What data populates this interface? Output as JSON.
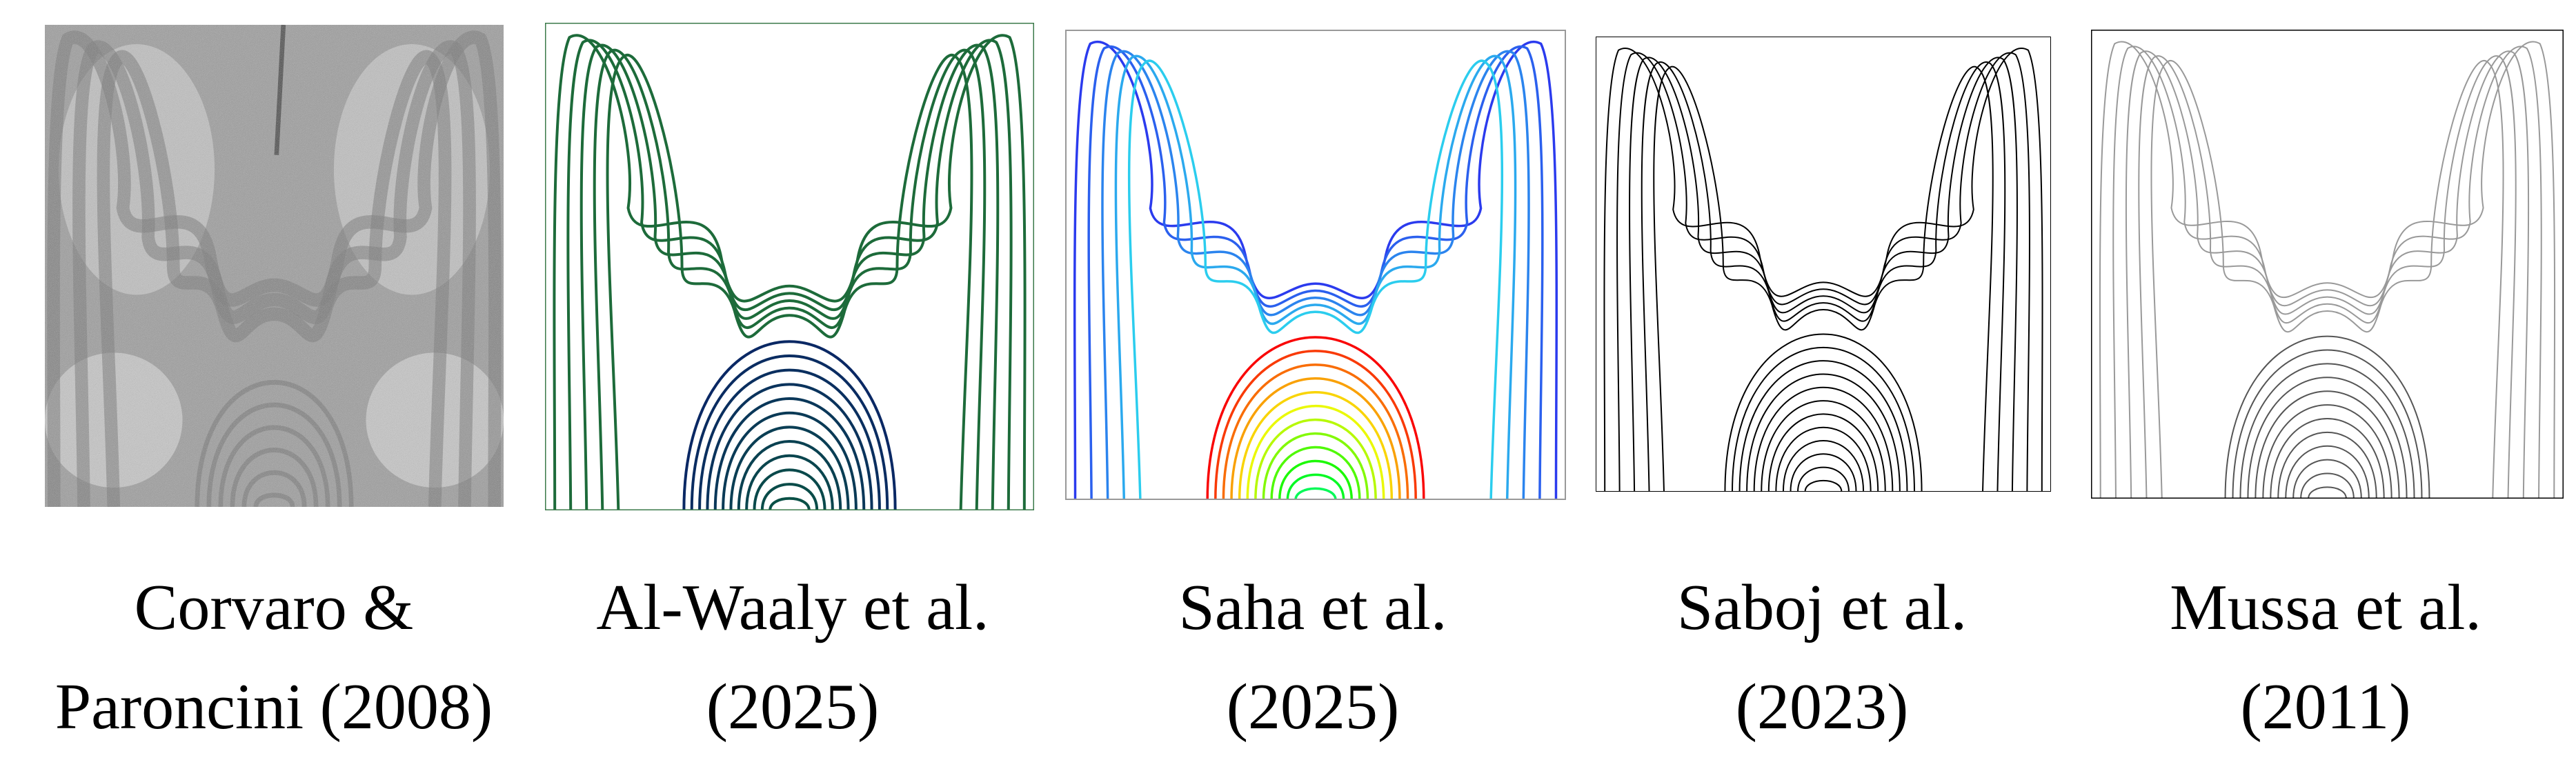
{
  "panels": [
    {
      "caption": [
        "Corvaro &",
        "Paroncini (2008)"
      ]
    },
    {
      "caption": [
        "Al-Waaly et al.",
        "(2025)"
      ]
    },
    {
      "caption": [
        "Saha et al.",
        "(2025)"
      ]
    },
    {
      "caption": [
        "Saboj et al.",
        "(2023)"
      ]
    },
    {
      "caption": [
        "Mussa et al.",
        "(2011)"
      ]
    }
  ]
}
